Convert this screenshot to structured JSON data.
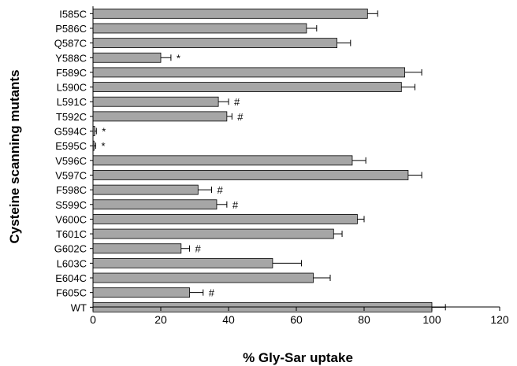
{
  "chart_data": {
    "type": "bar",
    "orientation": "horizontal",
    "xlabel": "% Gly-Sar uptake",
    "ylabel": "Cysteine scanning mutants",
    "xlim": [
      0,
      120
    ],
    "xticks": [
      0,
      20,
      40,
      60,
      80,
      100,
      120
    ],
    "grid": false,
    "bar_color": "#a6a6a6",
    "categories": [
      "I585C",
      "P586C",
      "Q587C",
      "Y588C",
      "F589C",
      "L590C",
      "L591C",
      "T592C",
      "G594C",
      "E595C",
      "V596C",
      "V597C",
      "F598C",
      "S599C",
      "V600C",
      "T601C",
      "G602C",
      "L603C",
      "E604C",
      "F605C",
      "WT"
    ],
    "values": [
      81,
      63,
      72,
      20,
      92,
      91,
      37,
      39.5,
      0.5,
      0.3,
      76.5,
      93,
      31,
      36.5,
      78,
      71,
      26,
      53,
      65,
      28.5,
      100
    ],
    "errors": [
      3,
      3,
      4,
      3,
      5,
      4,
      3,
      1.5,
      0.5,
      0.5,
      4,
      4,
      4,
      3,
      2,
      2.5,
      2.5,
      8.5,
      5,
      4,
      4
    ],
    "annotations": [
      "",
      "",
      "",
      "*",
      "",
      "",
      "#",
      "#",
      "*",
      "*",
      "",
      "",
      "#",
      "#",
      "",
      "",
      "#",
      "",
      "",
      "#",
      ""
    ]
  }
}
